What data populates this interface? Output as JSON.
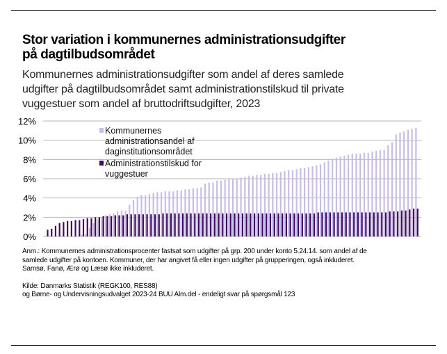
{
  "title": [
    "Stor variation i kommunernes administrationsudgifter",
    "på dagtilbudsområdet"
  ],
  "subtitle": [
    "Kommunernes administrationsudgifter som andel af deres samlede",
    "udgifter på dagtilbudsområdet samt administrationstilskud til private",
    "vuggestuer som andel af bruttodriftsudgifter, 2023"
  ],
  "notes": [
    "Anm.: Kommunernes administrationsprocenter fastsat som udgifter på grp. 200 under konto 5.24.14. som andel af de",
    "samlede udgifter på kontoen. Kommuner, der  har angivet få eller ingen udgifter på grupperingen, også inkluderet.",
    "Samsø, Fanø, Ærø og Læsø ikke inkluderet."
  ],
  "source": [
    "Kilde: Danmarks Statistik (REGK100, RES88)",
    "og Børne- og Undervisningsudvalget 2023-24 BUU Alm.del - endeligt svar på spørgsmål 123"
  ],
  "chart_data": {
    "type": "bar",
    "title": "",
    "xlabel": "",
    "ylabel": "",
    "ylim": [
      0,
      12
    ],
    "yticks": [
      0,
      2,
      4,
      6,
      8,
      10,
      12
    ],
    "ytick_labels": [
      "0%",
      "2%",
      "4%",
      "6%",
      "8%",
      "10%",
      "12%"
    ],
    "grid": true,
    "legend_position": "top-left inside",
    "categories_count": 94,
    "series": [
      {
        "name": "Kommunernes administrationsandel af daginstitutionsområdet",
        "legend_lines": [
          "Kommunernes",
          "administrationsandel af",
          "daginstitutionsområdet"
        ],
        "color": "#c9bde6",
        "values": [
          0,
          0,
          0,
          0,
          0,
          0,
          0,
          0,
          0,
          0.2,
          0.3,
          0.9,
          1.4,
          1.8,
          2.0,
          2.2,
          2.3,
          2.4,
          2.6,
          2.7,
          2.7,
          3.3,
          3.8,
          4.1,
          4.3,
          4.3,
          4.4,
          4.5,
          4.6,
          4.6,
          4.7,
          4.7,
          4.7,
          4.8,
          4.8,
          4.9,
          4.9,
          5.0,
          5.0,
          5.1,
          5.5,
          5.6,
          5.6,
          5.8,
          5.8,
          5.9,
          6.0,
          6.0,
          6.0,
          6.1,
          6.2,
          6.3,
          6.3,
          6.4,
          6.4,
          6.5,
          6.5,
          6.6,
          6.6,
          6.7,
          6.8,
          6.9,
          6.9,
          7.0,
          7.1,
          7.1,
          7.2,
          7.3,
          7.4,
          7.5,
          7.7,
          7.9,
          8.1,
          8.2,
          8.3,
          8.4,
          8.5,
          8.6,
          8.6,
          8.6,
          8.7,
          8.7,
          8.8,
          8.9,
          9.0,
          9.0,
          9.5,
          9.8,
          10.6,
          10.8,
          10.9,
          11.1,
          11.2,
          11.3
        ]
      },
      {
        "name": "Administrationstilskud for vuggestuer",
        "legend_lines": [
          "Administrationstilskud for",
          "vuggestuer"
        ],
        "color": "#3d0c5e",
        "values": [
          0.7,
          0.8,
          1.1,
          1.4,
          1.5,
          1.6,
          1.6,
          1.7,
          1.7,
          1.8,
          1.9,
          1.9,
          2.0,
          2.0,
          2.1,
          2.1,
          2.1,
          2.2,
          2.2,
          2.2,
          2.3,
          2.3,
          2.3,
          2.3,
          2.3,
          2.3,
          2.3,
          2.3,
          2.3,
          2.4,
          2.4,
          2.4,
          2.4,
          2.4,
          2.4,
          2.4,
          2.4,
          2.4,
          2.4,
          2.4,
          2.4,
          2.4,
          2.4,
          2.4,
          2.4,
          2.4,
          2.4,
          2.4,
          2.4,
          2.4,
          2.4,
          2.4,
          2.4,
          2.4,
          2.4,
          2.4,
          2.4,
          2.4,
          2.4,
          2.4,
          2.4,
          2.4,
          2.4,
          2.4,
          2.4,
          2.4,
          2.4,
          2.4,
          2.5,
          2.5,
          2.5,
          2.5,
          2.5,
          2.5,
          2.5,
          2.5,
          2.5,
          2.5,
          2.5,
          2.5,
          2.5,
          2.5,
          2.5,
          2.5,
          2.5,
          2.5,
          2.6,
          2.6,
          2.6,
          2.7,
          2.7,
          2.8,
          2.9,
          2.9
        ]
      }
    ]
  }
}
